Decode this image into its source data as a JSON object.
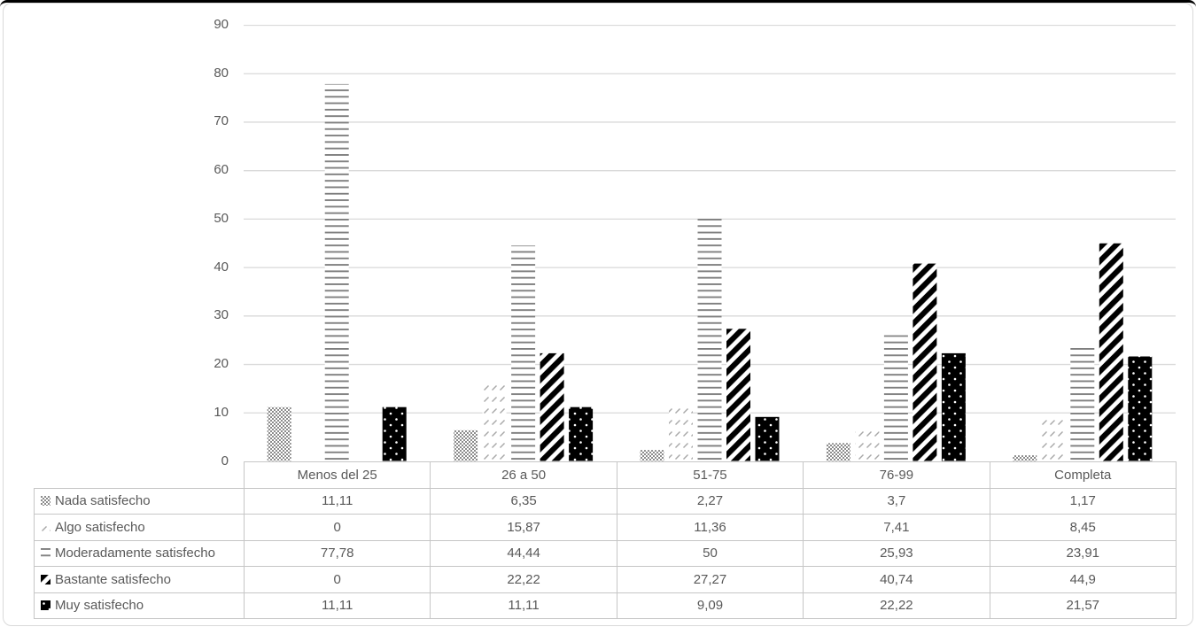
{
  "chart_data": {
    "type": "bar",
    "title": "",
    "xlabel": "",
    "ylabel": "",
    "categories": [
      "Menos del 25",
      "26 a 50",
      "51-75",
      "76-99",
      "Completa"
    ],
    "series": [
      {
        "name": "Nada satisfecho",
        "pattern": "trellis-weave-gray",
        "values": [
          11.11,
          6.35,
          2.27,
          3.7,
          1.17
        ],
        "display": [
          "11,11",
          "6,35",
          "2,27",
          "3,7",
          "1,17"
        ]
      },
      {
        "name": "Algo satisfecho",
        "pattern": "light-diagonal-dashes",
        "values": [
          0,
          15.87,
          11.36,
          7.41,
          8.45
        ],
        "display": [
          "0",
          "15,87",
          "11,36",
          "7,41",
          "8,45"
        ]
      },
      {
        "name": "Moderadamente satisfecho",
        "pattern": "horizontal-lines-gray",
        "values": [
          77.78,
          44.44,
          50,
          25.93,
          23.91
        ],
        "display": [
          "77,78",
          "44,44",
          "50",
          "25,93",
          "23,91"
        ]
      },
      {
        "name": "Bastante satisfecho",
        "pattern": "bold-diagonal-stripes-black",
        "values": [
          0,
          22.22,
          27.27,
          40.74,
          44.9
        ],
        "display": [
          "0",
          "22,22",
          "27,27",
          "40,74",
          "44,9"
        ]
      },
      {
        "name": "Muy satisfecho",
        "pattern": "black-with-white-dots",
        "values": [
          11.11,
          11.11,
          9.09,
          22.22,
          21.57
        ],
        "display": [
          "11,11",
          "11,11",
          "9,09",
          "22,22",
          "21,57"
        ]
      }
    ],
    "yticks": [
      0,
      10,
      20,
      30,
      40,
      50,
      60,
      70,
      80,
      90
    ],
    "ylim": [
      0,
      90
    ],
    "grid": true,
    "legend_position": "data-table-left-column",
    "colors": {
      "gridline": "#d9d9d9",
      "axis_text": "#595959",
      "table_border": "#c6c6c6",
      "pattern_gray": "#8c8c8c",
      "pattern_light_gray": "#a8a8a8",
      "pattern_line_gray": "#7f7f7f",
      "pattern_black": "#000000",
      "chart_border": "#d9d9d9"
    }
  }
}
